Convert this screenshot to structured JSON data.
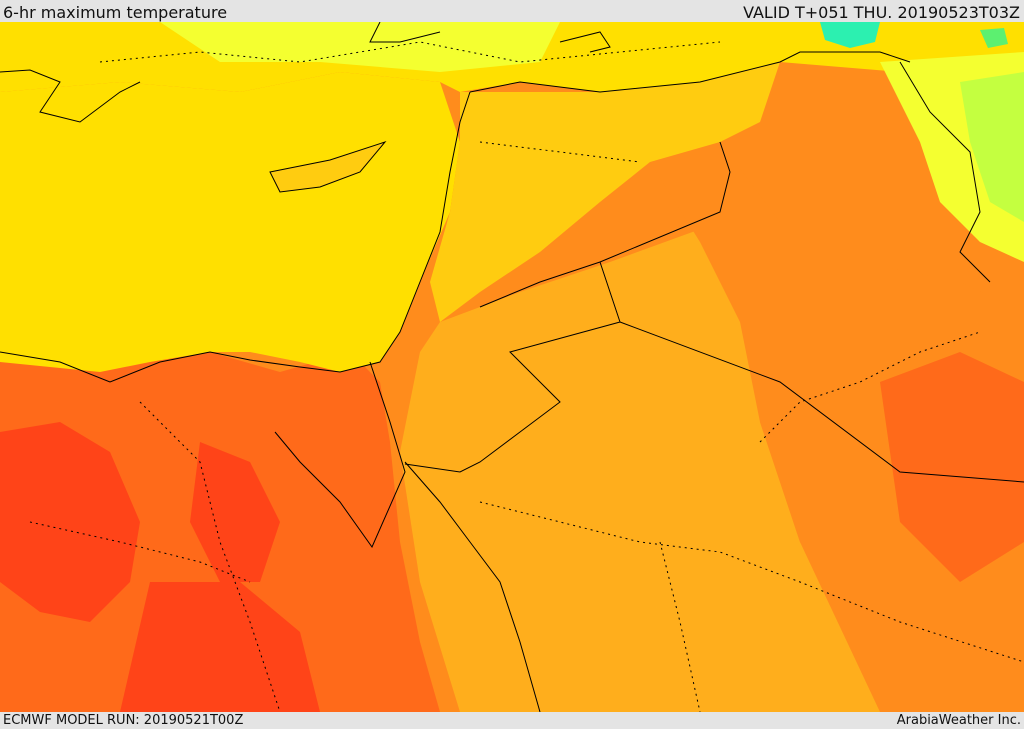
{
  "header": {
    "title": "6-hr maximum temperature",
    "valid": "VALID T+051 THU. 20190523T03Z"
  },
  "footer": {
    "model_run": "ECMWF MODEL RUN: 20190521T00Z",
    "credit": "ArabiaWeather Inc."
  },
  "map": {
    "variable": "6-hr maximum temperature",
    "colors": {
      "hot_red": "#ff4418",
      "orange_red": "#ff6a1a",
      "orange": "#ff8c1c",
      "amber": "#ffae1c",
      "gold": "#ffcc10",
      "yellow": "#ffe000",
      "light_yellow": "#f4ff30",
      "yellow_green": "#c4ff40",
      "green": "#5cf070",
      "cyan_green": "#2cf0b0",
      "border_line": "#000000"
    }
  }
}
